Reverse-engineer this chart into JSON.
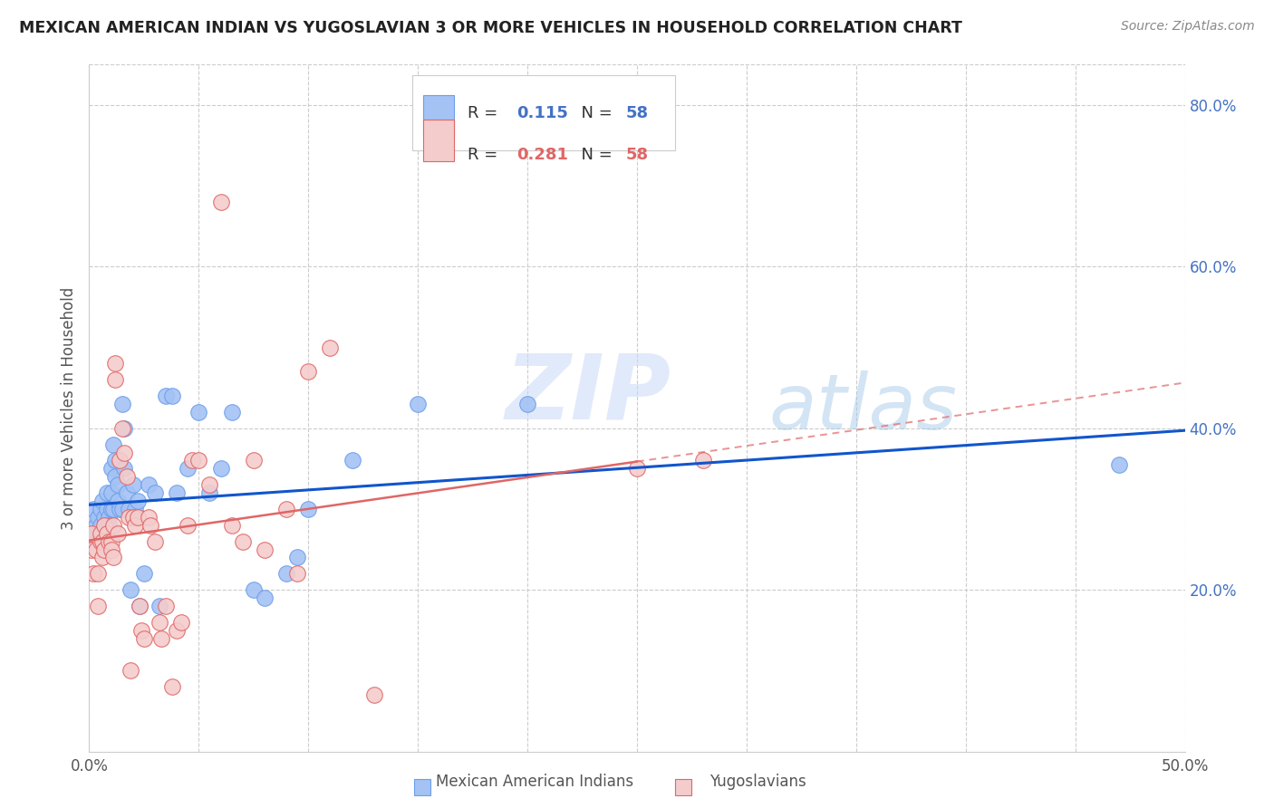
{
  "title": "MEXICAN AMERICAN INDIAN VS YUGOSLAVIAN 3 OR MORE VEHICLES IN HOUSEHOLD CORRELATION CHART",
  "source": "Source: ZipAtlas.com",
  "ylabel": "3 or more Vehicles in Household",
  "xmin": 0.0,
  "xmax": 0.5,
  "ymin": 0.0,
  "ymax": 0.85,
  "y_ticks_right": [
    0.2,
    0.4,
    0.6,
    0.8
  ],
  "y_tick_labels_right": [
    "20.0%",
    "40.0%",
    "60.0%",
    "80.0%"
  ],
  "legend_r1": "0.115",
  "legend_n1": "58",
  "legend_r2": "0.281",
  "legend_n2": "58",
  "color_blue": "#a4c2f4",
  "color_pink": "#f4cccc",
  "color_edge_blue": "#6d9eeb",
  "color_edge_pink": "#e06666",
  "color_line_blue": "#1155cc",
  "color_line_pink": "#e06666",
  "watermark": "ZIPatlas",
  "legend_label1": "Mexican American Indians",
  "legend_label2": "Yugoslavians",
  "blue_x": [
    0.001,
    0.002,
    0.003,
    0.003,
    0.004,
    0.004,
    0.005,
    0.005,
    0.006,
    0.006,
    0.007,
    0.007,
    0.008,
    0.008,
    0.009,
    0.009,
    0.01,
    0.01,
    0.01,
    0.011,
    0.011,
    0.012,
    0.012,
    0.013,
    0.013,
    0.014,
    0.015,
    0.015,
    0.016,
    0.016,
    0.017,
    0.018,
    0.019,
    0.02,
    0.021,
    0.022,
    0.023,
    0.025,
    0.027,
    0.03,
    0.032,
    0.035,
    0.038,
    0.04,
    0.045,
    0.05,
    0.055,
    0.06,
    0.065,
    0.075,
    0.08,
    0.09,
    0.095,
    0.1,
    0.12,
    0.15,
    0.2,
    0.47
  ],
  "blue_y": [
    0.27,
    0.3,
    0.28,
    0.26,
    0.29,
    0.27,
    0.3,
    0.28,
    0.31,
    0.27,
    0.29,
    0.27,
    0.32,
    0.3,
    0.29,
    0.28,
    0.3,
    0.32,
    0.35,
    0.3,
    0.38,
    0.36,
    0.34,
    0.33,
    0.31,
    0.3,
    0.43,
    0.3,
    0.4,
    0.35,
    0.32,
    0.3,
    0.2,
    0.33,
    0.3,
    0.31,
    0.18,
    0.22,
    0.33,
    0.32,
    0.18,
    0.44,
    0.44,
    0.32,
    0.35,
    0.42,
    0.32,
    0.35,
    0.42,
    0.2,
    0.19,
    0.22,
    0.24,
    0.3,
    0.36,
    0.43,
    0.43,
    0.355
  ],
  "pink_x": [
    0.001,
    0.001,
    0.002,
    0.003,
    0.004,
    0.004,
    0.005,
    0.005,
    0.006,
    0.006,
    0.007,
    0.007,
    0.008,
    0.009,
    0.01,
    0.01,
    0.011,
    0.011,
    0.012,
    0.012,
    0.013,
    0.014,
    0.015,
    0.016,
    0.017,
    0.018,
    0.019,
    0.02,
    0.021,
    0.022,
    0.023,
    0.024,
    0.025,
    0.027,
    0.028,
    0.03,
    0.032,
    0.033,
    0.035,
    0.038,
    0.04,
    0.042,
    0.045,
    0.047,
    0.05,
    0.055,
    0.06,
    0.065,
    0.07,
    0.075,
    0.08,
    0.09,
    0.095,
    0.1,
    0.11,
    0.13,
    0.25,
    0.28
  ],
  "pink_y": [
    0.27,
    0.25,
    0.22,
    0.25,
    0.22,
    0.18,
    0.26,
    0.27,
    0.26,
    0.24,
    0.28,
    0.25,
    0.27,
    0.26,
    0.26,
    0.25,
    0.28,
    0.24,
    0.46,
    0.48,
    0.27,
    0.36,
    0.4,
    0.37,
    0.34,
    0.29,
    0.1,
    0.29,
    0.28,
    0.29,
    0.18,
    0.15,
    0.14,
    0.29,
    0.28,
    0.26,
    0.16,
    0.14,
    0.18,
    0.08,
    0.15,
    0.16,
    0.28,
    0.36,
    0.36,
    0.33,
    0.68,
    0.28,
    0.26,
    0.36,
    0.25,
    0.3,
    0.22,
    0.47,
    0.5,
    0.07,
    0.35,
    0.36
  ]
}
